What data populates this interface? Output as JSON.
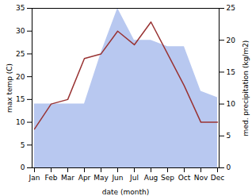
{
  "chart_data": {
    "type": "line",
    "xlabel": "date (month)",
    "ylabel": "max temp (C)",
    "y2label": "med. precipitation (kg/m2)",
    "categories": [
      "Jan",
      "Feb",
      "Mar",
      "Apr",
      "May",
      "Jun",
      "Jul",
      "Aug",
      "Sep",
      "Oct",
      "Nov",
      "Dec"
    ],
    "series": [
      {
        "type": "area",
        "axis": "y2",
        "color": "#b8c8f0",
        "values": [
          10.0,
          10.0,
          10.0,
          10.0,
          18.0,
          25.0,
          20.0,
          20.0,
          19.0,
          19.0,
          12.0,
          11.0
        ]
      },
      {
        "type": "line",
        "color": "#993333",
        "values": [
          8.5,
          14.0,
          15.0,
          24.0,
          25.0,
          30.0,
          27.0,
          32.0,
          25.0,
          18.0,
          10.0,
          10.0
        ]
      }
    ],
    "ylim": [
      0,
      35
    ],
    "yticks": [
      0,
      5,
      10,
      15,
      20,
      25,
      30,
      35
    ],
    "y2lim": [
      0,
      25
    ],
    "y2ticks": [
      0,
      5,
      10,
      15,
      20,
      25
    ]
  }
}
